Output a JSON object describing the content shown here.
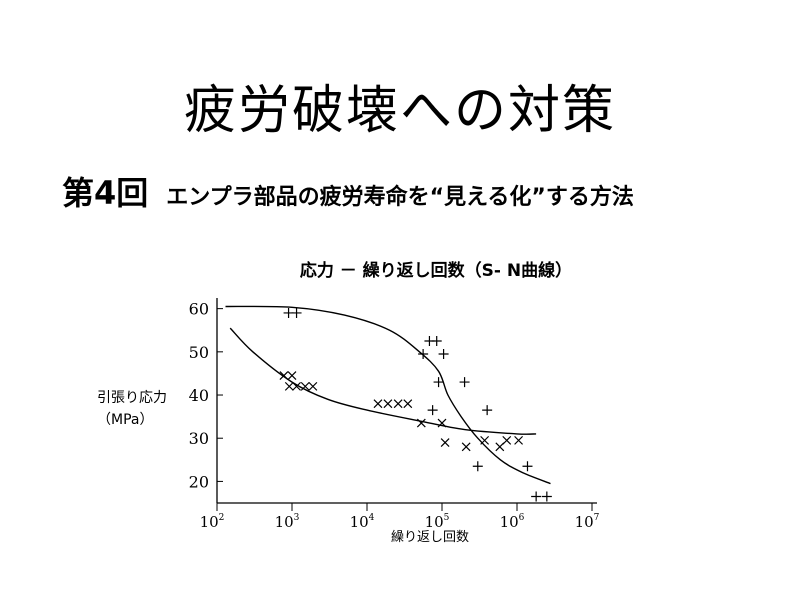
{
  "slide": {
    "title": "疲労破壊への対策",
    "lesson": "第4回",
    "topic": "エンプラ部品の疲労寿命を“見える化”する方法"
  },
  "chart_data": {
    "type": "scatter",
    "title": "応力 － 繰り返し回数（S- N曲線）",
    "xlabel": "繰り返し回数",
    "ylabel_lines": [
      "引張り応力",
      "（MPa）"
    ],
    "xscale": "log",
    "xlim_exp": [
      2,
      7
    ],
    "x_ticks": [
      {
        "base": "10",
        "exp": "2"
      },
      {
        "base": "10",
        "exp": "3"
      },
      {
        "base": "10",
        "exp": "4"
      },
      {
        "base": "10",
        "exp": "5"
      },
      {
        "base": "10",
        "exp": "6"
      },
      {
        "base": "10",
        "exp": "7"
      }
    ],
    "ylim": [
      15,
      62
    ],
    "y_ticks": [
      "20",
      "30",
      "40",
      "50",
      "60"
    ],
    "grid": false,
    "series": [
      {
        "marker": "+",
        "points": [
          [
            900,
            59
          ],
          [
            1150,
            59
          ],
          [
            56000,
            49.5
          ],
          [
            68000,
            52.5
          ],
          [
            85000,
            52.5
          ],
          [
            105000,
            49.5
          ],
          [
            90000,
            43
          ],
          [
            200000,
            43
          ],
          [
            75000,
            36.5
          ],
          [
            400000,
            36.5
          ],
          [
            300000,
            23.5
          ],
          [
            1380000,
            23.5
          ],
          [
            1800000,
            16.5
          ],
          [
            2500000,
            16.5
          ]
        ],
        "curve": [
          [
            130,
            60.5
          ],
          [
            1000,
            60.3
          ],
          [
            5000,
            58.5
          ],
          [
            20000,
            55
          ],
          [
            50000,
            50
          ],
          [
            90000,
            45.5
          ],
          [
            120000,
            40
          ],
          [
            180000,
            35
          ],
          [
            300000,
            30
          ],
          [
            600000,
            25
          ],
          [
            1200000,
            22
          ],
          [
            2800000,
            19.5
          ]
        ]
      },
      {
        "marker": "x",
        "points": [
          [
            780,
            44.5
          ],
          [
            1000,
            44.5
          ],
          [
            920,
            42
          ],
          [
            1150,
            42
          ],
          [
            1500,
            42
          ],
          [
            1900,
            42
          ],
          [
            14000,
            38
          ],
          [
            19000,
            38
          ],
          [
            26000,
            38
          ],
          [
            35000,
            38
          ],
          [
            53000,
            33.5
          ],
          [
            100000,
            33.5
          ],
          [
            110000,
            29
          ],
          [
            210000,
            28
          ],
          [
            370000,
            29.5
          ],
          [
            590000,
            28
          ],
          [
            730000,
            29.5
          ],
          [
            1050000,
            29.5
          ]
        ],
        "curve": [
          [
            150,
            55.5
          ],
          [
            300,
            50
          ],
          [
            1000,
            43
          ],
          [
            3000,
            39
          ],
          [
            10000,
            36.5
          ],
          [
            50000,
            34
          ],
          [
            200000,
            32
          ],
          [
            1000000,
            31
          ],
          [
            1800000,
            31
          ]
        ]
      }
    ]
  }
}
